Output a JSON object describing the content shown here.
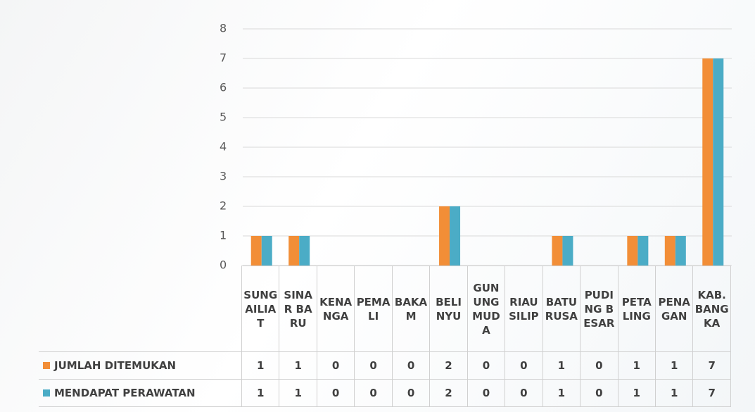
{
  "chart_data": {
    "type": "bar",
    "categories": [
      "SUNGAILIAT",
      "SINAR BARU",
      "KENANGA",
      "PEMALI",
      "BAKAM",
      "BELINYU",
      "GUNUNG MUDA",
      "RIAU SILIP",
      "BATURUSA",
      "PUDING BESAR",
      "PETALING",
      "PENAGAN",
      "KAB. BANGKA"
    ],
    "series": [
      {
        "name": "JUMLAH DITEMUKAN",
        "color": "#f28e37",
        "values": [
          1,
          1,
          0,
          0,
          0,
          2,
          0,
          0,
          1,
          0,
          1,
          1,
          7
        ]
      },
      {
        "name": "MENDAPAT PERAWATAN",
        "color": "#4bacc6",
        "values": [
          1,
          1,
          0,
          0,
          0,
          2,
          0,
          0,
          1,
          0,
          1,
          1,
          7
        ]
      }
    ],
    "ylim": [
      0,
      8
    ],
    "yticks": [
      0,
      1,
      2,
      3,
      4,
      5,
      6,
      7,
      8
    ],
    "grid": true
  }
}
